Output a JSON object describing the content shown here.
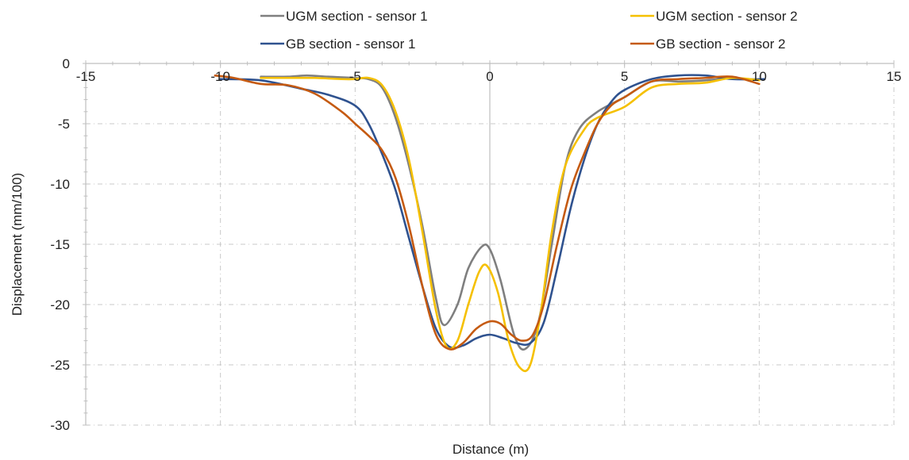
{
  "chart_data": {
    "type": "line",
    "xlabel": "Distance (m)",
    "ylabel": "Displacement (mm/100)",
    "xlim": [
      -15,
      15
    ],
    "ylim": [
      -30,
      0
    ],
    "x_ticks": [
      -15,
      -10,
      -5,
      0,
      5,
      10,
      15
    ],
    "y_ticks": [
      0,
      -5,
      -10,
      -15,
      -20,
      -25,
      -30
    ],
    "grid": true,
    "legend_position": "top",
    "series": [
      {
        "name": "UGM section - sensor 1",
        "color": "#7f7f7f",
        "x": [
          -8.5,
          -7.5,
          -6.8,
          -6,
          -5,
          -4.5,
          -4,
          -3.5,
          -3,
          -2.5,
          -2,
          -1.7,
          -1.2,
          -0.8,
          -0.3,
          0,
          0.4,
          0.9,
          1.3,
          1.8,
          2.3,
          2.8,
          3.3,
          4,
          5,
          6,
          7,
          8,
          9
        ],
        "y": [
          -1.1,
          -1.1,
          -1.0,
          -1.1,
          -1.2,
          -1.3,
          -2.0,
          -4.5,
          -8.5,
          -13.5,
          -19.5,
          -21.7,
          -20.0,
          -17.0,
          -15.2,
          -15.4,
          -18.0,
          -22.5,
          -23.7,
          -21.5,
          -15.0,
          -8.5,
          -5.5,
          -4.0,
          -2.8,
          -1.5,
          -1.5,
          -1.4,
          -1.2
        ]
      },
      {
        "name": "UGM section - sensor 2",
        "color": "#f5c000",
        "x": [
          -8.5,
          -7.5,
          -6.5,
          -5.5,
          -5,
          -4.5,
          -4,
          -3.5,
          -3,
          -2.5,
          -2,
          -1.6,
          -1.2,
          -0.8,
          -0.4,
          -0.1,
          0.3,
          0.7,
          1.1,
          1.5,
          1.9,
          2.3,
          2.8,
          3.5,
          4,
          5,
          6,
          7,
          8,
          9,
          10
        ],
        "y": [
          -1.2,
          -1.2,
          -1.2,
          -1.3,
          -1.3,
          -1.2,
          -1.8,
          -4.0,
          -8.0,
          -14.0,
          -20.5,
          -23.5,
          -23.0,
          -20.0,
          -17.3,
          -16.8,
          -19.0,
          -23.0,
          -25.2,
          -25.0,
          -20.5,
          -14.0,
          -8.5,
          -5.5,
          -4.5,
          -3.6,
          -2.0,
          -1.7,
          -1.6,
          -1.2,
          -1.4
        ]
      },
      {
        "name": "GB section - sensor 1",
        "color": "#2f528f",
        "x": [
          -10,
          -8.5,
          -7,
          -6,
          -5,
          -4.5,
          -4,
          -3.5,
          -3,
          -2.5,
          -2,
          -1.5,
          -1.0,
          -0.5,
          0,
          0.5,
          1.0,
          1.5,
          2.0,
          2.5,
          3,
          3.5,
          4,
          4.5,
          5,
          6,
          7,
          8,
          9,
          10.2
        ],
        "y": [
          -1.3,
          -1.4,
          -2.1,
          -2.6,
          -3.5,
          -5.0,
          -7.5,
          -10.5,
          -14.5,
          -18.5,
          -22.0,
          -23.5,
          -23.4,
          -22.8,
          -22.5,
          -22.8,
          -23.2,
          -23.2,
          -21.5,
          -17.0,
          -12.0,
          -8.0,
          -5.0,
          -3.2,
          -2.2,
          -1.3,
          -1.0,
          -1.0,
          -1.3,
          -1.3
        ]
      },
      {
        "name": "GB section - sensor 2",
        "color": "#c55a11",
        "x": [
          -10.2,
          -9.5,
          -8.5,
          -7.5,
          -6.5,
          -5.5,
          -5,
          -4.5,
          -4,
          -3.5,
          -3,
          -2.5,
          -2,
          -1.5,
          -1.0,
          -0.5,
          0,
          0.4,
          0.8,
          1.2,
          1.6,
          2.0,
          2.5,
          3,
          3.5,
          4,
          4.5,
          5,
          6,
          7,
          8,
          9,
          10
        ],
        "y": [
          -1.0,
          -1.2,
          -1.7,
          -1.8,
          -2.5,
          -4.0,
          -5.0,
          -6.0,
          -7.2,
          -9.5,
          -13.5,
          -18.5,
          -22.5,
          -23.7,
          -23.2,
          -22.0,
          -21.4,
          -21.6,
          -22.5,
          -23.0,
          -22.5,
          -20.0,
          -15.0,
          -10.5,
          -7.5,
          -5.0,
          -3.5,
          -2.8,
          -1.5,
          -1.3,
          -1.2,
          -1.1,
          -1.7
        ]
      }
    ]
  }
}
